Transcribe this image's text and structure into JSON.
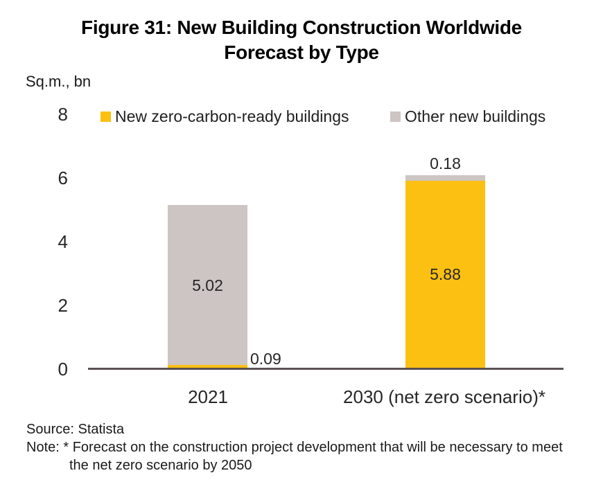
{
  "title": {
    "line1": "Figure 31: New Building Construction Worldwide",
    "line2": "Forecast by Type"
  },
  "unit_label": "Sq.m., bn",
  "chart_data": {
    "type": "bar",
    "stacked": true,
    "title": "Figure 31: New Building Construction Worldwide Forecast by Type",
    "ylabel": "Sq.m., bn",
    "ylim": [
      0,
      8
    ],
    "yticks": [
      0,
      2,
      4,
      6,
      8
    ],
    "grid": false,
    "legend_position": "top",
    "categories": [
      "2021",
      "2030 (net zero scenario)*"
    ],
    "series": [
      {
        "name": "New zero-carbon-ready buildings",
        "color": "#FCC013",
        "values": [
          0.09,
          5.88
        ]
      },
      {
        "name": "Other new buildings",
        "color": "#CDC5C3",
        "values": [
          5.02,
          0.18
        ]
      }
    ],
    "totals": [
      5.11,
      6.06
    ],
    "axis_color": "#5A5052"
  },
  "footer": {
    "source": "Source: Statista",
    "note_label": "Note: *",
    "note_text": "Forecast on the construction project development that will be necessary to meet the net zero scenario by 2050"
  }
}
